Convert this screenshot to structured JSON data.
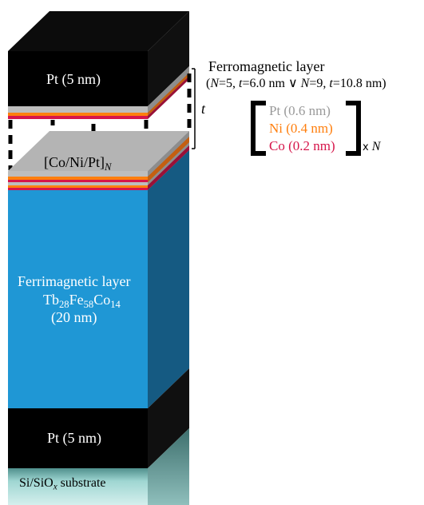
{
  "layers": {
    "top_pt": "Pt (5 nm)",
    "multilayer_prefix": "[Co/Ni/Pt]",
    "multilayer_sub": "N",
    "ferri_title": "Ferrimagnetic layer",
    "ferri_formula": {
      "tb": "Tb",
      "tb_sub": "28",
      "fe": "Fe",
      "fe_sub": "58",
      "co": "Co",
      "co_sub": "14"
    },
    "ferri_thickness": "(20 nm)",
    "bottom_pt": "Pt (5 nm)",
    "substrate_prefix": "Si/SiO",
    "substrate_sub": "x",
    "substrate_suffix": " substrate"
  },
  "annotation": {
    "title": "Ferromagnetic layer",
    "params": {
      "open": "(",
      "n1_var": "N",
      "n1_val": "=5, ",
      "t1_var": "t",
      "t1_val": "=6.0 nm ",
      "or": "∨",
      "n2_var": " N",
      "n2_val": "=9, ",
      "t2_var": "t",
      "t2_val": "=10.8 nm)"
    },
    "t_label": "t"
  },
  "repeat_unit": {
    "pt": "Pt (0.6 nm)",
    "ni": "Ni (0.4 nm)",
    "co": "Co (0.2 nm)",
    "times": "x",
    "n": "N"
  },
  "colors": {
    "pt_layer": "#9a9a9a",
    "ni_layer": "#ff7f0e",
    "co_layer": "#d6154a",
    "ferri_front": "#1f97d5",
    "ferri_side": "#155a82",
    "pt_block": "#000000",
    "substrate": "#9fd6d2"
  }
}
